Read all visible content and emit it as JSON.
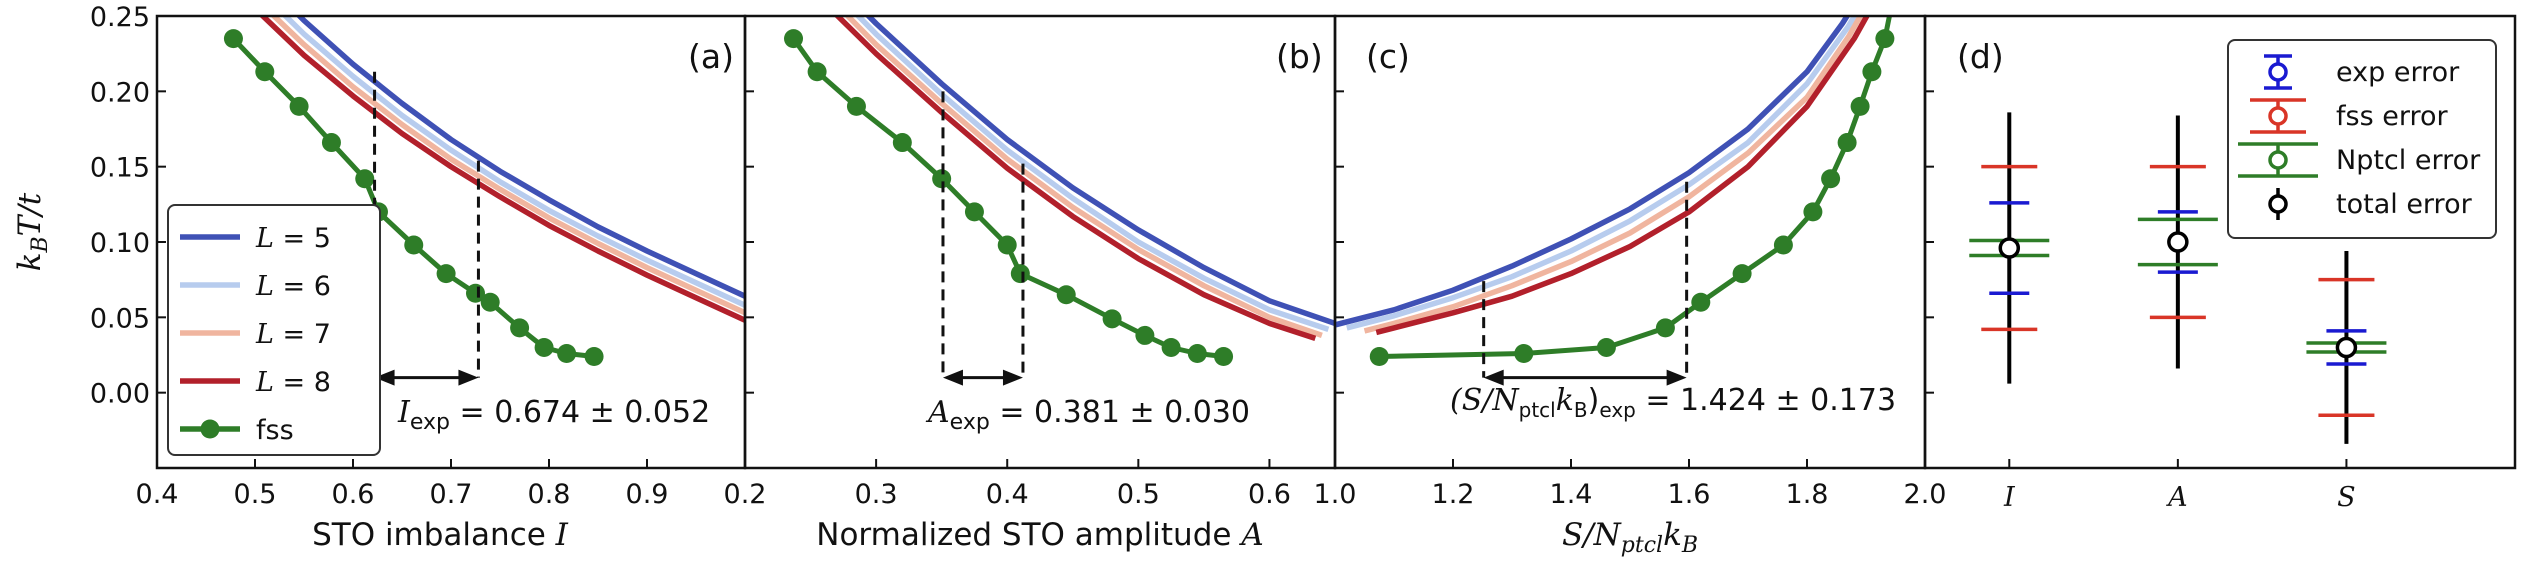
{
  "colors": {
    "L5": "#3f51b5",
    "L6": "#b7ccee",
    "L7": "#f0b59f",
    "L8": "#b2202b",
    "fss": "#2e7d28",
    "exp_error": "#1a1ad1",
    "fss_error": "#d93527",
    "nptcl_error": "#2e7d28",
    "total_error": "#000000"
  },
  "y_axis": {
    "label": "k_B T/t",
    "label_main": "k",
    "label_sub": "B",
    "label_rest": "T/t",
    "ylim": [
      -0.05,
      0.25
    ],
    "ticks": [
      0.0,
      0.05,
      0.1,
      0.15,
      0.2,
      0.25
    ],
    "tick_labels": [
      "0.00",
      "0.05",
      "0.10",
      "0.15",
      "0.20",
      "0.25"
    ]
  },
  "chart_data": [
    {
      "panel": "(a)",
      "type": "line",
      "xlabel_text": "STO imbalance ",
      "xlabel_var": "I",
      "xlim": [
        0.4,
        1.0
      ],
      "ylim": [
        -0.05,
        0.25
      ],
      "xticks": [
        0.4,
        0.5,
        0.6,
        0.7,
        0.8,
        0.9
      ],
      "xtick_labels": [
        "0.4",
        "0.5",
        "0.6",
        "0.7",
        "0.8",
        "0.9"
      ],
      "series": [
        {
          "name": "L = 5",
          "key": "L5",
          "x": [
            0.5,
            0.55,
            0.6,
            0.65,
            0.7,
            0.75,
            0.8,
            0.85,
            0.9,
            0.95,
            1.0
          ],
          "y": [
            0.28,
            0.247,
            0.218,
            0.192,
            0.168,
            0.147,
            0.128,
            0.11,
            0.094,
            0.079,
            0.064
          ]
        },
        {
          "name": "L = 6",
          "key": "L6",
          "x": [
            0.5,
            0.55,
            0.6,
            0.65,
            0.7,
            0.75,
            0.8,
            0.85,
            0.9,
            0.95,
            1.0
          ],
          "y": [
            0.27,
            0.238,
            0.21,
            0.184,
            0.161,
            0.14,
            0.121,
            0.104,
            0.088,
            0.073,
            0.058
          ]
        },
        {
          "name": "L = 7",
          "key": "L7",
          "x": [
            0.5,
            0.55,
            0.6,
            0.65,
            0.7,
            0.75,
            0.8,
            0.85,
            0.9,
            0.95,
            1.0
          ],
          "y": [
            0.262,
            0.231,
            0.203,
            0.178,
            0.155,
            0.135,
            0.116,
            0.099,
            0.083,
            0.068,
            0.053
          ]
        },
        {
          "name": "L = 8",
          "key": "L8",
          "x": [
            0.5,
            0.55,
            0.6,
            0.65,
            0.7,
            0.75,
            0.8,
            0.85,
            0.9,
            0.95,
            1.0
          ],
          "y": [
            0.255,
            0.224,
            0.197,
            0.172,
            0.15,
            0.13,
            0.111,
            0.094,
            0.078,
            0.063,
            0.048
          ]
        },
        {
          "name": "fss",
          "key": "fss",
          "markers": true,
          "x": [
            0.478,
            0.51,
            0.545,
            0.578,
            0.612,
            0.626,
            0.662,
            0.695,
            0.725,
            0.74,
            0.77,
            0.795,
            0.818,
            0.846
          ],
          "y": [
            0.235,
            0.213,
            0.19,
            0.166,
            0.142,
            0.12,
            0.098,
            0.079,
            0.066,
            0.06,
            0.043,
            0.03,
            0.026,
            0.024
          ]
        }
      ],
      "bracket": {
        "x1": 0.622,
        "x2": 0.728,
        "y_top1": 0.213,
        "y_top2": 0.154,
        "y": 0.01
      },
      "annotation_lhs": "I",
      "annotation_sub": "exp",
      "annotation_value": " = 0.674 ± 0.052",
      "legend": {
        "placement": "lower-left",
        "entries": [
          "L = 5",
          "L = 6",
          "L = 7",
          "L = 8",
          "fss"
        ]
      }
    },
    {
      "panel": "(b)",
      "type": "line",
      "xlabel_text": "Normalized STO amplitude ",
      "xlabel_var": "A",
      "xlim": [
        0.2,
        0.65
      ],
      "ylim": [
        -0.05,
        0.25
      ],
      "xticks": [
        0.2,
        0.3,
        0.4,
        0.5,
        0.6
      ],
      "xtick_labels": [
        "0.2",
        "0.3",
        "0.4",
        "0.5",
        "0.6"
      ],
      "series": [
        {
          "name": "L = 5",
          "key": "L5",
          "x": [
            0.26,
            0.3,
            0.35,
            0.4,
            0.45,
            0.5,
            0.55,
            0.6,
            0.65
          ],
          "y": [
            0.28,
            0.245,
            0.205,
            0.168,
            0.136,
            0.108,
            0.083,
            0.061,
            0.046
          ]
        },
        {
          "name": "L = 6",
          "key": "L6",
          "x": [
            0.255,
            0.3,
            0.35,
            0.4,
            0.45,
            0.5,
            0.55,
            0.6,
            0.645
          ],
          "y": [
            0.278,
            0.238,
            0.198,
            0.161,
            0.129,
            0.1,
            0.076,
            0.055,
            0.042
          ]
        },
        {
          "name": "L = 7",
          "key": "L7",
          "x": [
            0.25,
            0.3,
            0.35,
            0.4,
            0.45,
            0.5,
            0.55,
            0.6,
            0.64
          ],
          "y": [
            0.275,
            0.231,
            0.192,
            0.155,
            0.123,
            0.095,
            0.071,
            0.05,
            0.038
          ]
        },
        {
          "name": "L = 8",
          "key": "L8",
          "x": [
            0.245,
            0.3,
            0.35,
            0.4,
            0.45,
            0.5,
            0.55,
            0.6,
            0.635
          ],
          "y": [
            0.272,
            0.225,
            0.186,
            0.149,
            0.117,
            0.089,
            0.065,
            0.046,
            0.036
          ]
        },
        {
          "name": "fss",
          "key": "fss",
          "markers": true,
          "x": [
            0.237,
            0.255,
            0.285,
            0.32,
            0.35,
            0.375,
            0.4,
            0.41,
            0.445,
            0.48,
            0.505,
            0.525,
            0.545,
            0.565
          ],
          "y": [
            0.235,
            0.213,
            0.19,
            0.166,
            0.142,
            0.12,
            0.098,
            0.079,
            0.065,
            0.049,
            0.038,
            0.03,
            0.026,
            0.024
          ]
        }
      ],
      "bracket": {
        "x1": 0.351,
        "x2": 0.412,
        "y_top1": 0.2,
        "y_top2": 0.152,
        "y": 0.01
      },
      "annotation_lhs": "A",
      "annotation_sub": "exp",
      "annotation_value": " = 0.381 ± 0.030"
    },
    {
      "panel": "(c)",
      "type": "line",
      "xlabel_text": "S/N",
      "xlabel_sub": "ptcl",
      "xlabel_rest": "k",
      "xlabel_sub2": "B",
      "xlim": [
        1.0,
        2.0
      ],
      "ylim": [
        -0.05,
        0.25
      ],
      "xticks": [
        1.0,
        1.2,
        1.4,
        1.6,
        1.8,
        2.0
      ],
      "xtick_labels": [
        "1.0",
        "1.2",
        "1.4",
        "1.6",
        "1.8",
        "2.0"
      ],
      "series": [
        {
          "name": "L = 5",
          "key": "L5",
          "x": [
            1.0,
            1.1,
            1.2,
            1.3,
            1.4,
            1.5,
            1.6,
            1.7,
            1.8,
            1.86,
            1.9
          ],
          "y": [
            0.045,
            0.055,
            0.068,
            0.084,
            0.102,
            0.122,
            0.146,
            0.175,
            0.213,
            0.245,
            0.27
          ]
        },
        {
          "name": "L = 6",
          "key": "L6",
          "x": [
            1.02,
            1.1,
            1.2,
            1.3,
            1.4,
            1.5,
            1.6,
            1.7,
            1.8,
            1.87,
            1.91
          ],
          "y": [
            0.043,
            0.051,
            0.063,
            0.077,
            0.094,
            0.114,
            0.138,
            0.166,
            0.205,
            0.243,
            0.27
          ]
        },
        {
          "name": "L = 7",
          "key": "L7",
          "x": [
            1.05,
            1.1,
            1.2,
            1.3,
            1.4,
            1.5,
            1.6,
            1.7,
            1.8,
            1.87,
            1.92
          ],
          "y": [
            0.041,
            0.046,
            0.057,
            0.071,
            0.087,
            0.106,
            0.13,
            0.159,
            0.196,
            0.236,
            0.27
          ]
        },
        {
          "name": "L = 8",
          "key": "L8",
          "x": [
            1.07,
            1.1,
            1.2,
            1.3,
            1.4,
            1.5,
            1.6,
            1.7,
            1.8,
            1.88,
            1.93
          ],
          "y": [
            0.04,
            0.043,
            0.053,
            0.064,
            0.079,
            0.097,
            0.12,
            0.15,
            0.19,
            0.235,
            0.27
          ]
        },
        {
          "name": "fss",
          "key": "fss",
          "markers": true,
          "x": [
            1.075,
            1.32,
            1.46,
            1.56,
            1.62,
            1.69,
            1.76,
            1.81,
            1.84,
            1.868,
            1.89,
            1.91,
            1.932,
            1.95
          ],
          "y": [
            0.024,
            0.026,
            0.03,
            0.043,
            0.06,
            0.079,
            0.098,
            0.12,
            0.142,
            0.166,
            0.19,
            0.213,
            0.235,
            0.27
          ]
        }
      ],
      "bracket": {
        "x1": 1.252,
        "x2": 1.596,
        "y_top1": 0.074,
        "y_top2": 0.14,
        "y": 0.01
      },
      "annotation_prefix": "(S/N",
      "annotation_sub1": "ptcl",
      "annotation_mid": "k",
      "annotation_sub2": "B",
      "annotation_close": ")",
      "annotation_sub": "exp",
      "annotation_value": " = 1.424 ± 0.173"
    },
    {
      "panel": "(d)",
      "type": "errorbar",
      "categories": [
        "I",
        "A",
        "S"
      ],
      "xlim": [
        -0.5,
        3.0
      ],
      "ylim": [
        -0.05,
        0.25
      ],
      "center": [
        0.096,
        0.1,
        0.03
      ],
      "errors": [
        {
          "name": "exp error",
          "key": "exp_error",
          "halfwidth": [
            0.03,
            0.02,
            0.011
          ]
        },
        {
          "name": "fss error",
          "key": "fss_error",
          "halfwidth": [
            0.054,
            0.05,
            0.045
          ]
        },
        {
          "name": "Nptcl error",
          "key": "nptcl_error",
          "halfwidth": [
            0.005,
            0.015,
            0.003
          ]
        },
        {
          "name": "total error",
          "key": "total_error",
          "halfwidth": [
            0.09,
            0.084,
            0.064
          ]
        }
      ],
      "legend": {
        "placement": "top-right",
        "entries": [
          "exp error",
          "fss error",
          "Nptcl error",
          "total error"
        ]
      }
    }
  ]
}
